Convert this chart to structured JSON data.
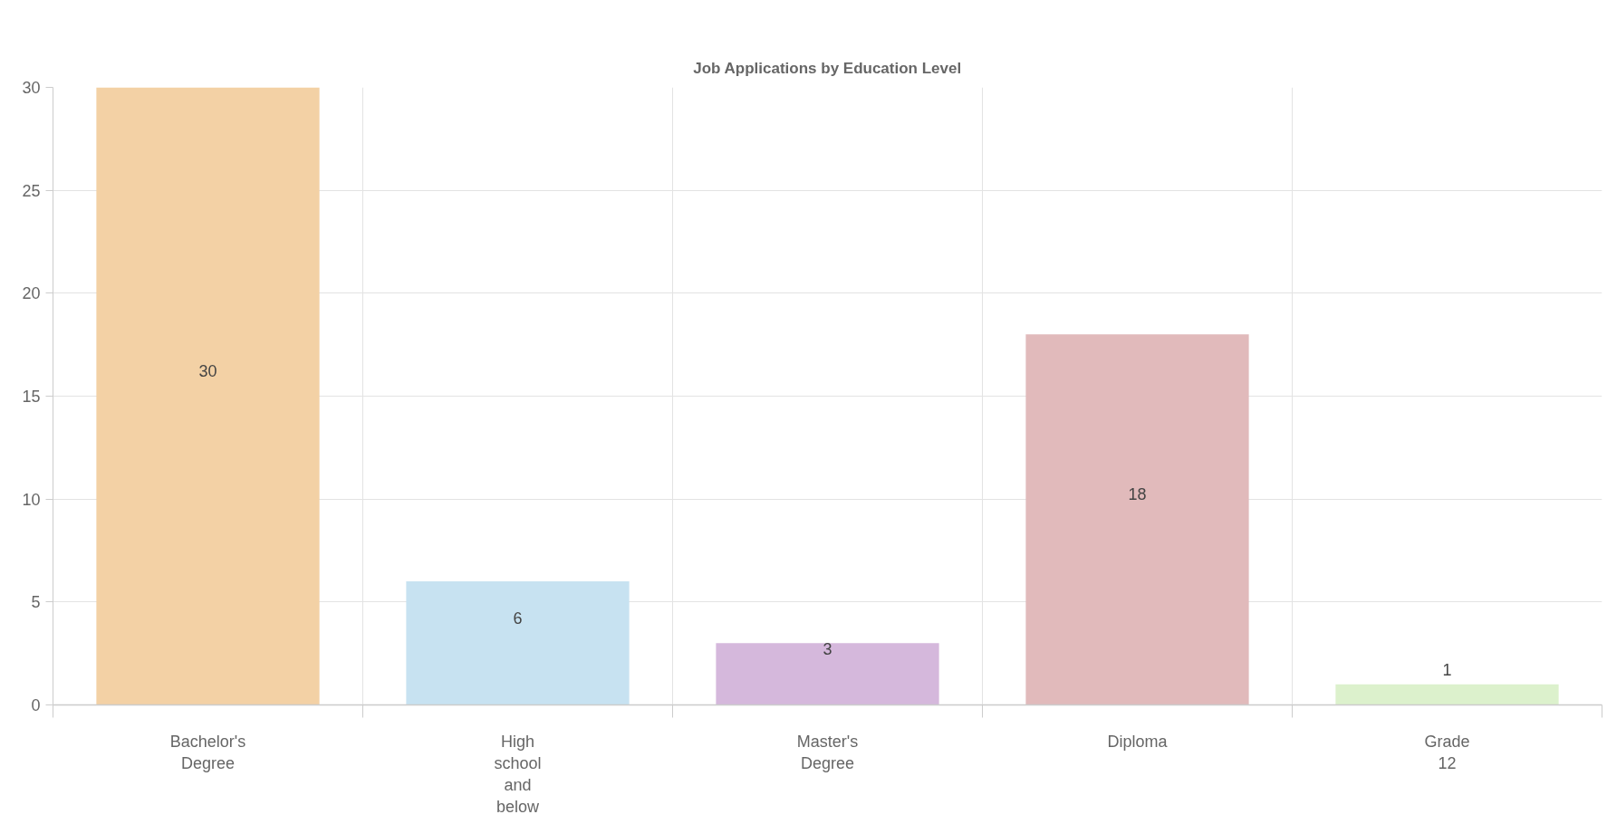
{
  "chart_data": {
    "type": "bar",
    "title": "Job Applications by Education Level",
    "categories": [
      "Bachelor's Degree",
      "High school and below",
      "Master's Degree",
      "Diploma",
      "Grade 12"
    ],
    "values": [
      30,
      6,
      3,
      18,
      1
    ],
    "colors": [
      "#f3d1a5",
      "#c7e2f1",
      "#d5b8dc",
      "#e1babb",
      "#dcf1cc"
    ],
    "ylim": [
      0,
      30
    ],
    "yticks": [
      0,
      5,
      10,
      15,
      20,
      25,
      30
    ],
    "grid": true,
    "data_labels": true
  }
}
